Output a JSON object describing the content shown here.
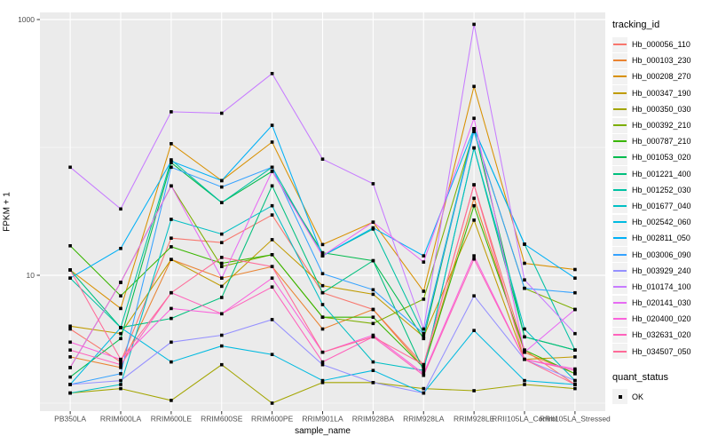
{
  "chart_data": {
    "type": "line",
    "xlabel": "sample_name",
    "ylabel": "FPKM + 1",
    "y_scale": "log10",
    "ylim": [
      1,
      1000
    ],
    "grid": true,
    "legend_position": "right",
    "legend_title": "tracking_id",
    "legend2": {
      "title": "quant_status",
      "items": [
        {
          "label": "OK",
          "shape": "black-square"
        }
      ]
    },
    "y_ticks": [
      {
        "label": "1000",
        "value": 1000
      },
      {
        "label": "10",
        "value": 10
      }
    ],
    "y_minor_gridlines": [
      1,
      100
    ],
    "categories": [
      "PB350LA",
      "RRIM600LA",
      "RRIM600LE",
      "RRIM600SE",
      "RRIM600PE",
      "RRIM901LA",
      "RRIM928BA",
      "RRIM928LA",
      "RRIM928LE",
      "RRII105LA_Control",
      "RRII105LA_Stressed"
    ],
    "series": [
      {
        "name": "Hb_000056_110",
        "color": "#F8766D",
        "values": [
          3.8,
          2.1,
          19.5,
          18,
          29.6,
          7.3,
          5.4,
          2.0,
          51,
          2.6,
          1.4
        ]
      },
      {
        "name": "Hb_000103_230",
        "color": "#EA8331",
        "values": [
          2.3,
          1.9,
          13.3,
          9.5,
          11.7,
          3.8,
          5.4,
          1.9,
          40,
          2.5,
          1.7
        ]
      },
      {
        "name": "Hb_000208_270",
        "color": "#D89000",
        "values": [
          11,
          5.5,
          107,
          55,
          110,
          17.4,
          26,
          7.5,
          300,
          12.4,
          11.1
        ]
      },
      {
        "name": "Hb_000347_190",
        "color": "#C09B00",
        "values": [
          4.0,
          3.5,
          13.3,
          8.2,
          19,
          8.3,
          7.1,
          3.3,
          27,
          2.2,
          2.3
        ]
      },
      {
        "name": "Hb_000350_030",
        "color": "#A3A500",
        "values": [
          1.2,
          1.3,
          1.05,
          2.0,
          1.0,
          1.45,
          1.45,
          1.3,
          1.25,
          1.4,
          1.3
        ]
      },
      {
        "name": "Hb_000392_210",
        "color": "#7CAE00",
        "values": [
          1.9,
          8.8,
          50,
          11.7,
          14.5,
          4.7,
          4.2,
          6.5,
          133,
          7.9,
          5.4
        ]
      },
      {
        "name": "Hb_000787_210",
        "color": "#39B600",
        "values": [
          17,
          6.9,
          16.7,
          12.4,
          14.5,
          4.7,
          4.7,
          1.9,
          35,
          2.6,
          1.7
        ]
      },
      {
        "name": "Hb_001053_020",
        "color": "#00BB4E",
        "values": [
          1.6,
          3.2,
          76,
          37,
          65,
          15,
          13,
          3.2,
          140,
          3.3,
          2.6
        ]
      },
      {
        "name": "Hb_001221_400",
        "color": "#00BF7D",
        "values": [
          11,
          3.9,
          4.6,
          6.7,
          50,
          7.3,
          13,
          1.8,
          99,
          3.3,
          2.6
        ]
      },
      {
        "name": "Hb_001252_030",
        "color": "#00C1A3",
        "values": [
          9.5,
          3.9,
          80,
          37,
          70,
          14.2,
          23,
          3.5,
          140,
          17.5,
          2.6
        ]
      },
      {
        "name": "Hb_001677_040",
        "color": "#00BFC4",
        "values": [
          1.2,
          1.4,
          27.4,
          21,
          35,
          5.9,
          2.1,
          1.8,
          99,
          3.8,
          1.5
        ]
      },
      {
        "name": "Hb_002542_060",
        "color": "#00BAE0",
        "values": [
          1.4,
          3.9,
          2.1,
          2.8,
          2.4,
          1.5,
          1.8,
          1.2,
          3.7,
          1.5,
          1.4
        ]
      },
      {
        "name": "Hb_002811_050",
        "color": "#00B0F6",
        "values": [
          9.5,
          16.2,
          78,
          55,
          149,
          14.2,
          23.5,
          14.2,
          140,
          17.5,
          9.5
        ]
      },
      {
        "name": "Hb_003006_090",
        "color": "#35A2FF",
        "values": [
          1.4,
          1.7,
          70,
          49,
          70,
          10.3,
          7.7,
          3.5,
          133,
          7.9,
          7.3
        ]
      },
      {
        "name": "Hb_003929_240",
        "color": "#9590FF",
        "values": [
          1.4,
          1.5,
          3.0,
          3.4,
          4.5,
          2.0,
          1.45,
          1.2,
          6.9,
          2.2,
          1.5
        ]
      },
      {
        "name": "Hb_010174_100",
        "color": "#C77CFF",
        "values": [
          70,
          33,
          190,
          185,
          378,
          81,
          52,
          3.8,
          918,
          9.2,
          3.5
        ]
      },
      {
        "name": "Hb_020141_030",
        "color": "#E76BF3",
        "values": [
          1.9,
          8.8,
          50,
          9.5,
          65,
          14.2,
          26,
          12.7,
          169,
          2.5,
          5.4
        ]
      },
      {
        "name": "Hb_020400_020",
        "color": "#FA62DB",
        "values": [
          3.0,
          2.2,
          5.5,
          5.0,
          9.5,
          2.5,
          3.4,
          1.7,
          14.2,
          2.2,
          1.85
        ]
      },
      {
        "name": "Hb_032631_020",
        "color": "#FF62BC",
        "values": [
          2.6,
          2.0,
          7.3,
          5.0,
          8.1,
          2.1,
          3.3,
          1.65,
          13.4,
          2.2,
          1.8
        ]
      },
      {
        "name": "Hb_034507_050",
        "color": "#FF6A98",
        "values": [
          11,
          2.2,
          7.3,
          13.8,
          11.7,
          2.5,
          3.3,
          2.0,
          51,
          2.2,
          1.4
        ]
      }
    ]
  },
  "colors": {
    "panel_bg": "#EBEBEB",
    "grid": "#FFFFFF",
    "axis_text": "#4D4D4D",
    "tick_mark": "#333333",
    "point": "#000000",
    "legend_key_bg": "#F2F2F2"
  }
}
